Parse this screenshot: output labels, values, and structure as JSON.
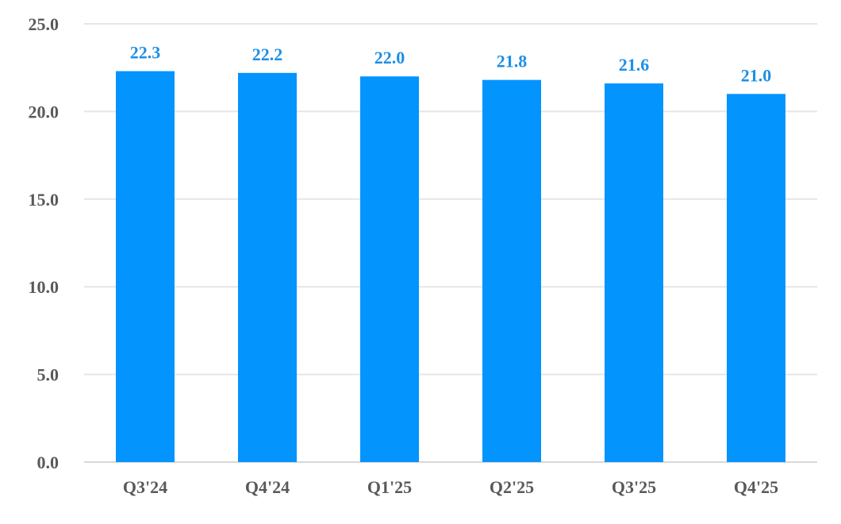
{
  "chart_data": {
    "type": "bar",
    "title": "",
    "xlabel": "",
    "ylabel": "",
    "categories": [
      "Q3'24",
      "Q4'24",
      "Q1'25",
      "Q2'25",
      "Q3'25",
      "Q4'25"
    ],
    "values": [
      22.3,
      22.2,
      22.0,
      21.8,
      21.6,
      21.0
    ],
    "data_labels": [
      "22.3",
      "22.2",
      "22.0",
      "21.8",
      "21.6",
      "21.0"
    ],
    "ylim": [
      0,
      25
    ],
    "yticks": [
      0,
      5,
      10,
      15,
      20,
      25
    ],
    "ytick_labels": [
      "0.0",
      "5.0",
      "10.0",
      "15.0",
      "20.0",
      "25.0"
    ],
    "grid": true,
    "legend": "none",
    "colors": {
      "bar": "#0394FE",
      "data_label": "#1C8FE6",
      "tick_label": "#595959",
      "gridline": "#E6E6E6",
      "axis_line": "#D9D9D9"
    }
  }
}
